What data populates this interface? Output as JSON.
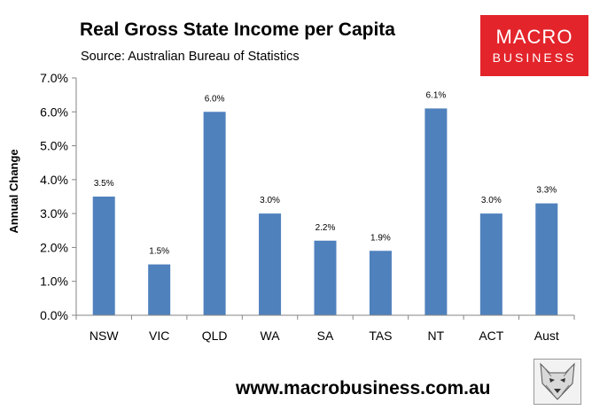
{
  "header": {
    "title": "Real Gross State Income per Capita",
    "subtitle": "Source: Australian Bureau of Statistics"
  },
  "logo": {
    "line1": "MACRO",
    "line2": "BUSINESS",
    "color": "#e3242b"
  },
  "footer": {
    "website": "www.macrobusiness.com.au",
    "mascot_icon": "wolf-icon"
  },
  "chart_data": {
    "type": "bar",
    "categories": [
      "NSW",
      "VIC",
      "QLD",
      "WA",
      "SA",
      "TAS",
      "NT",
      "ACT",
      "Aust"
    ],
    "values": [
      3.5,
      1.5,
      6.0,
      3.0,
      2.2,
      1.9,
      6.1,
      3.0,
      3.3
    ],
    "data_labels": [
      "3.5%",
      "1.5%",
      "6.0%",
      "3.0%",
      "2.2%",
      "1.9%",
      "6.1%",
      "3.0%",
      "3.3%"
    ],
    "ylabel": "Annual Change",
    "xlabel": "",
    "ylim": [
      0,
      7
    ],
    "yticks": [
      "0.0%",
      "1.0%",
      "2.0%",
      "3.0%",
      "4.0%",
      "5.0%",
      "6.0%",
      "7.0%"
    ],
    "grid": false,
    "bar_color": "#4f81bd"
  }
}
